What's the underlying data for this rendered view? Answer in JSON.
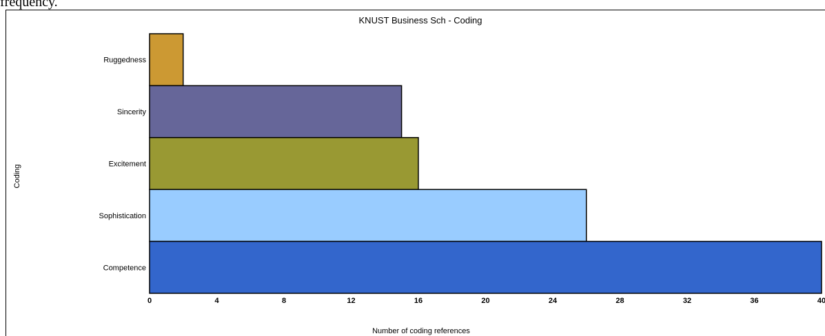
{
  "caption": "frequency.",
  "chart_data": {
    "type": "bar",
    "orientation": "horizontal",
    "title": "KNUST Business Sch - Coding",
    "xlabel": "Number of coding references",
    "ylabel": "Coding",
    "xlim": [
      0,
      40
    ],
    "xticks": [
      "0",
      "4",
      "8",
      "12",
      "16",
      "20",
      "24",
      "28",
      "32",
      "36",
      "40"
    ],
    "categories": [
      "Ruggedness",
      "Sincerity",
      "Excitement",
      "Sophistication",
      "Competence"
    ],
    "values": [
      2,
      15,
      16,
      26,
      40
    ],
    "colors": [
      "#CC9933",
      "#666699",
      "#999933",
      "#99CCFF",
      "#3366CC"
    ],
    "grid": false,
    "legend": "none"
  }
}
